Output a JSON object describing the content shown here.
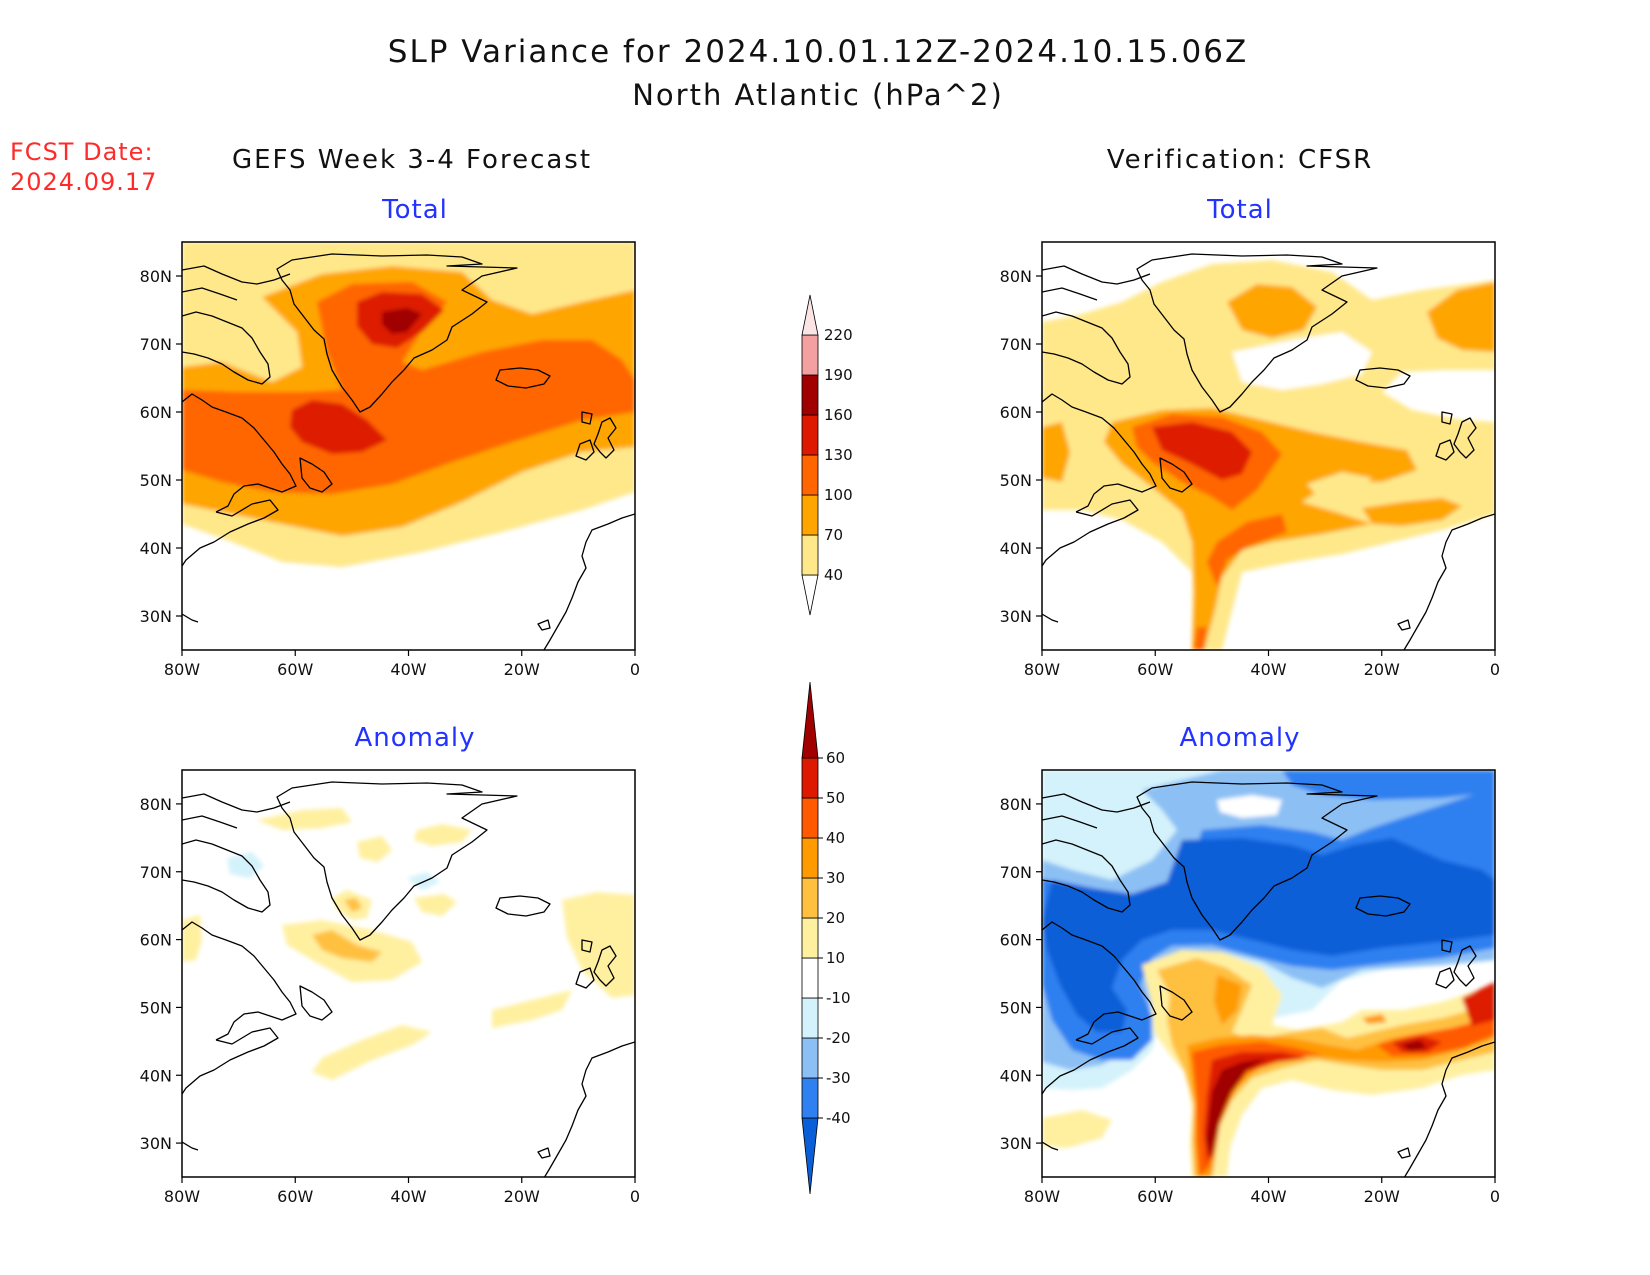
{
  "header": {
    "title": "SLP Variance for 2024.10.01.12Z-2024.10.15.06Z",
    "subtitle": "North Atlantic (hPa^2)",
    "fcst_label": "FCST Date:",
    "fcst_date": "2024.09.17"
  },
  "columns": {
    "left": "GEFS Week 3-4 Forecast",
    "right": "Verification: CFSR"
  },
  "panels": {
    "fcst_total": "Total",
    "verif_total": "Total",
    "fcst_anomaly": "Anomaly",
    "verif_anomaly": "Anomaly"
  },
  "axes": {
    "lon_ticks": [
      "80W",
      "60W",
      "40W",
      "20W",
      "0"
    ],
    "lat_ticks": [
      "80N",
      "70N",
      "60N",
      "50N",
      "40N",
      "30N"
    ]
  },
  "colorbars": {
    "total": {
      "labels": [
        "40",
        "70",
        "100",
        "130",
        "160",
        "190",
        "220"
      ],
      "colors": [
        "#ffe88a",
        "#ffa500",
        "#ff6600",
        "#dd1a00",
        "#a00000",
        "#f4a0a0",
        "#fde4e4"
      ]
    },
    "anomaly": {
      "labels": [
        "-40",
        "-30",
        "-20",
        "-10",
        "10",
        "20",
        "30",
        "40",
        "50",
        "60"
      ],
      "colors": [
        "#0a5fd8",
        "#2f80f0",
        "#8cc0f4",
        "#d4f2fb",
        "#ffffff",
        "#fff0a0",
        "#ffc040",
        "#ff9a00",
        "#ff5a00",
        "#dd1a00",
        "#a00000"
      ]
    }
  },
  "colors": {
    "title_blue": "#2233ff",
    "fcst_red": "#ff2a2a"
  }
}
